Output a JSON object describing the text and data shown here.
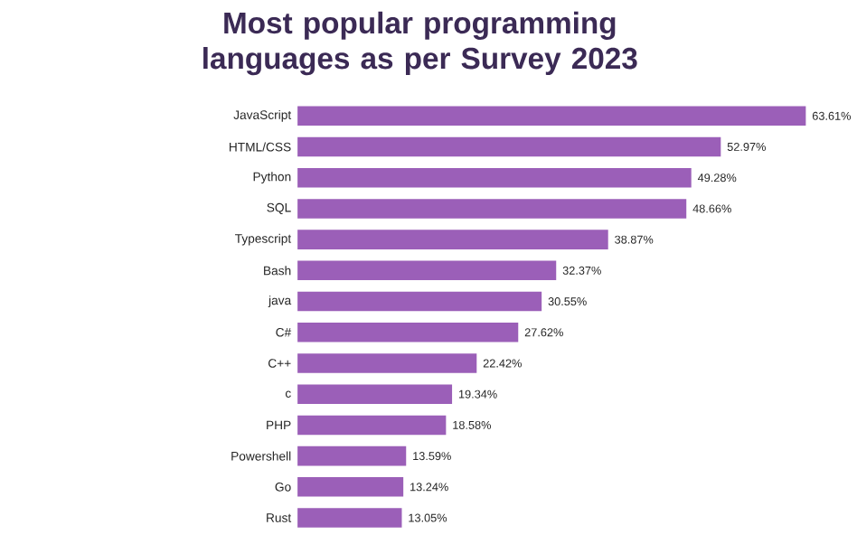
{
  "chart_data": {
    "type": "bar",
    "orientation": "horizontal",
    "title": "Most popular programming languages as per Survey 2023",
    "color": "#9b5fb8",
    "categories": [
      "JavaScript",
      "HTML/CSS",
      "Python",
      "SQL",
      "Typescript",
      "Bash",
      "java",
      "C#",
      "C++",
      "c",
      "PHP",
      "Powershell",
      "Go",
      "Rust"
    ],
    "values": [
      63.61,
      52.97,
      49.28,
      48.66,
      38.87,
      32.37,
      30.55,
      27.62,
      22.42,
      19.34,
      18.58,
      13.59,
      13.24,
      13.05
    ],
    "value_labels": [
      "63.61%",
      "52.97%",
      "49.28%",
      "48.66%",
      "38.87%",
      "32.37%",
      "30.55%",
      "27.62%",
      "22.42%",
      "19.34%",
      "18.58%",
      "13.59%",
      "13.24%",
      "13.05%"
    ]
  }
}
